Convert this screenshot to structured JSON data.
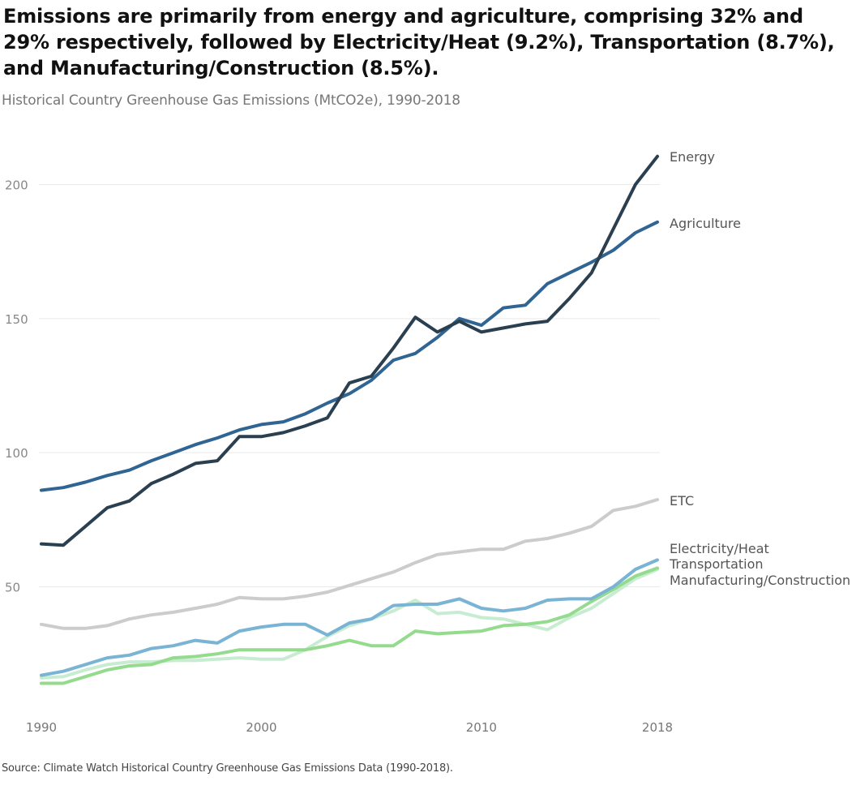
{
  "header": {
    "title": "Emissions are primarily from energy and agriculture, comprising 32% and 29% respectively, followed by Electricity/Heat (9.2%), Transportation (8.7%), and Manufacturing/Construction (8.5%).",
    "subtitle": "Historical Country Greenhouse Gas Emissions (MtCO2e), 1990-2018"
  },
  "footer": {
    "source": "Source: Climate Watch Historical Country Greenhouse Gas Emissions Data (1990-2018)."
  },
  "chart_data": {
    "type": "line",
    "title": "Emissions are primarily from energy and agriculture, comprising 32% and 29% respectively, followed by Electricity/Heat (9.2%), Transportation (8.7%), and Manufacturing/Construction (8.5%).",
    "subtitle": "Historical Country Greenhouse Gas Emissions (MtCO2e), 1990-2018",
    "xlabel": "",
    "ylabel": "",
    "xlim": [
      1990,
      2018
    ],
    "ylim": [
      0,
      215
    ],
    "x_ticks": [
      1990,
      2000,
      2010,
      2018
    ],
    "y_ticks": [
      50,
      100,
      150,
      200
    ],
    "grid": "horizontal",
    "legend": "direct labels at line ends (right)",
    "x": [
      1990,
      1991,
      1992,
      1993,
      1994,
      1995,
      1996,
      1997,
      1998,
      1999,
      2000,
      2001,
      2002,
      2003,
      2004,
      2005,
      2006,
      2007,
      2008,
      2009,
      2010,
      2011,
      2012,
      2013,
      2014,
      2015,
      2016,
      2017,
      2018
    ],
    "series": [
      {
        "name": "Energy",
        "color": "#2a3f50",
        "values": [
          66,
          65.5,
          72.5,
          79.5,
          82,
          88.5,
          92,
          96,
          97,
          106,
          106,
          107.5,
          110,
          113,
          126,
          128.5,
          139,
          150.5,
          145,
          149,
          145,
          146.5,
          148,
          149,
          157.5,
          167,
          183.5,
          200,
          210.5
        ]
      },
      {
        "name": "Agriculture",
        "color": "#2f6493",
        "values": [
          86,
          87,
          89,
          91.5,
          93.5,
          97,
          100,
          103,
          105.5,
          108.5,
          110.5,
          111.5,
          114.5,
          118.5,
          122,
          127,
          134.5,
          137,
          143,
          150,
          147.5,
          154,
          155,
          163,
          167,
          171,
          175.5,
          182,
          186
        ]
      },
      {
        "name": "ETC",
        "color": "#cccccc",
        "values": [
          36,
          34.5,
          34.5,
          35.5,
          38,
          39.5,
          40.5,
          42,
          43.5,
          46,
          45.5,
          45.5,
          46.5,
          48,
          50.5,
          53,
          55.5,
          59,
          62,
          63,
          64,
          64,
          67,
          68,
          70,
          72.5,
          78.5,
          80,
          82.5
        ]
      },
      {
        "name": "Electricity/Heat",
        "color": "#7ab4d4",
        "values": [
          17,
          18.5,
          21,
          23.5,
          24.5,
          27,
          28,
          30,
          29,
          33.5,
          35,
          36,
          36,
          32,
          36.5,
          38,
          43,
          43.5,
          43.5,
          45.5,
          42,
          41,
          42,
          45,
          45.5,
          45.5,
          50,
          56.5,
          60
        ]
      },
      {
        "name": "Transportation",
        "color": "#c8ecd2",
        "values": [
          16,
          16.5,
          19,
          21,
          22,
          22,
          22.5,
          22.5,
          23,
          23.5,
          23,
          23,
          26.5,
          31.5,
          35.5,
          38,
          41,
          45,
          40,
          40.5,
          38.5,
          38,
          36,
          34,
          38.5,
          42,
          47.5,
          53,
          56.5
        ]
      },
      {
        "name": "Manufacturing/Construction",
        "color": "#95db8e",
        "values": [
          14,
          14,
          16.5,
          19,
          20.5,
          21,
          23.5,
          24,
          25,
          26.5,
          26.5,
          26.5,
          26.5,
          28,
          30,
          28,
          28,
          33.5,
          32.5,
          33,
          33.5,
          35.5,
          36,
          37,
          39.5,
          44.5,
          49,
          54,
          57
        ]
      }
    ]
  }
}
